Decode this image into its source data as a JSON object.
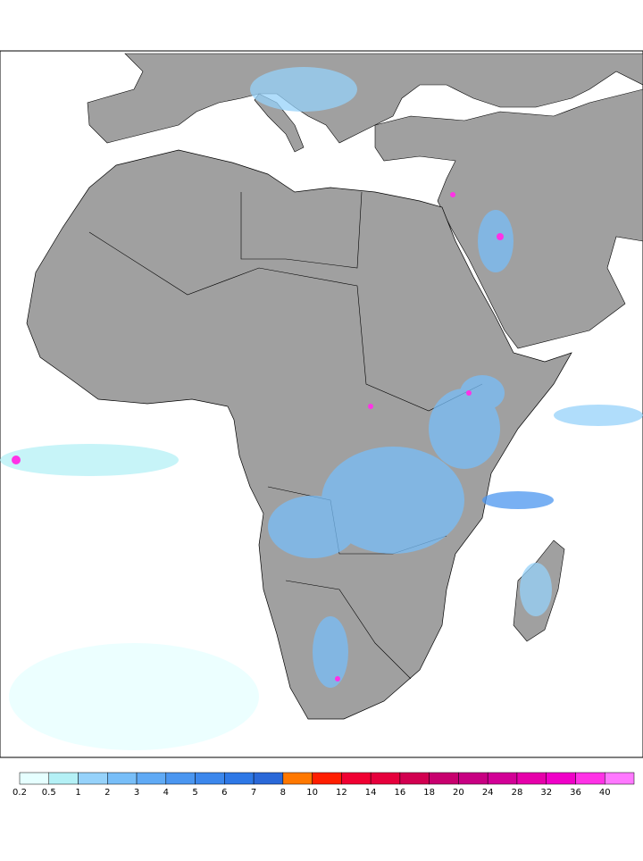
{
  "colorbar": {
    "levels": [
      0.2,
      0.5,
      1,
      2,
      3,
      4,
      5,
      6,
      7,
      8,
      10,
      12,
      14,
      16,
      18,
      20,
      24,
      28,
      32,
      36,
      40
    ],
    "colors": [
      "#e6ffff",
      "#b4f0f5",
      "#96d2fa",
      "#78bef8",
      "#60aaf5",
      "#4b96f0",
      "#3c87ec",
      "#2e78e6",
      "#2a68d8",
      "#ff7800",
      "#ff1e00",
      "#f00032",
      "#e6003c",
      "#d20050",
      "#c8006e",
      "#c80082",
      "#d20096",
      "#e600aa",
      "#f000c8",
      "#ff32e6",
      "#ff78ff"
    ]
  }
}
